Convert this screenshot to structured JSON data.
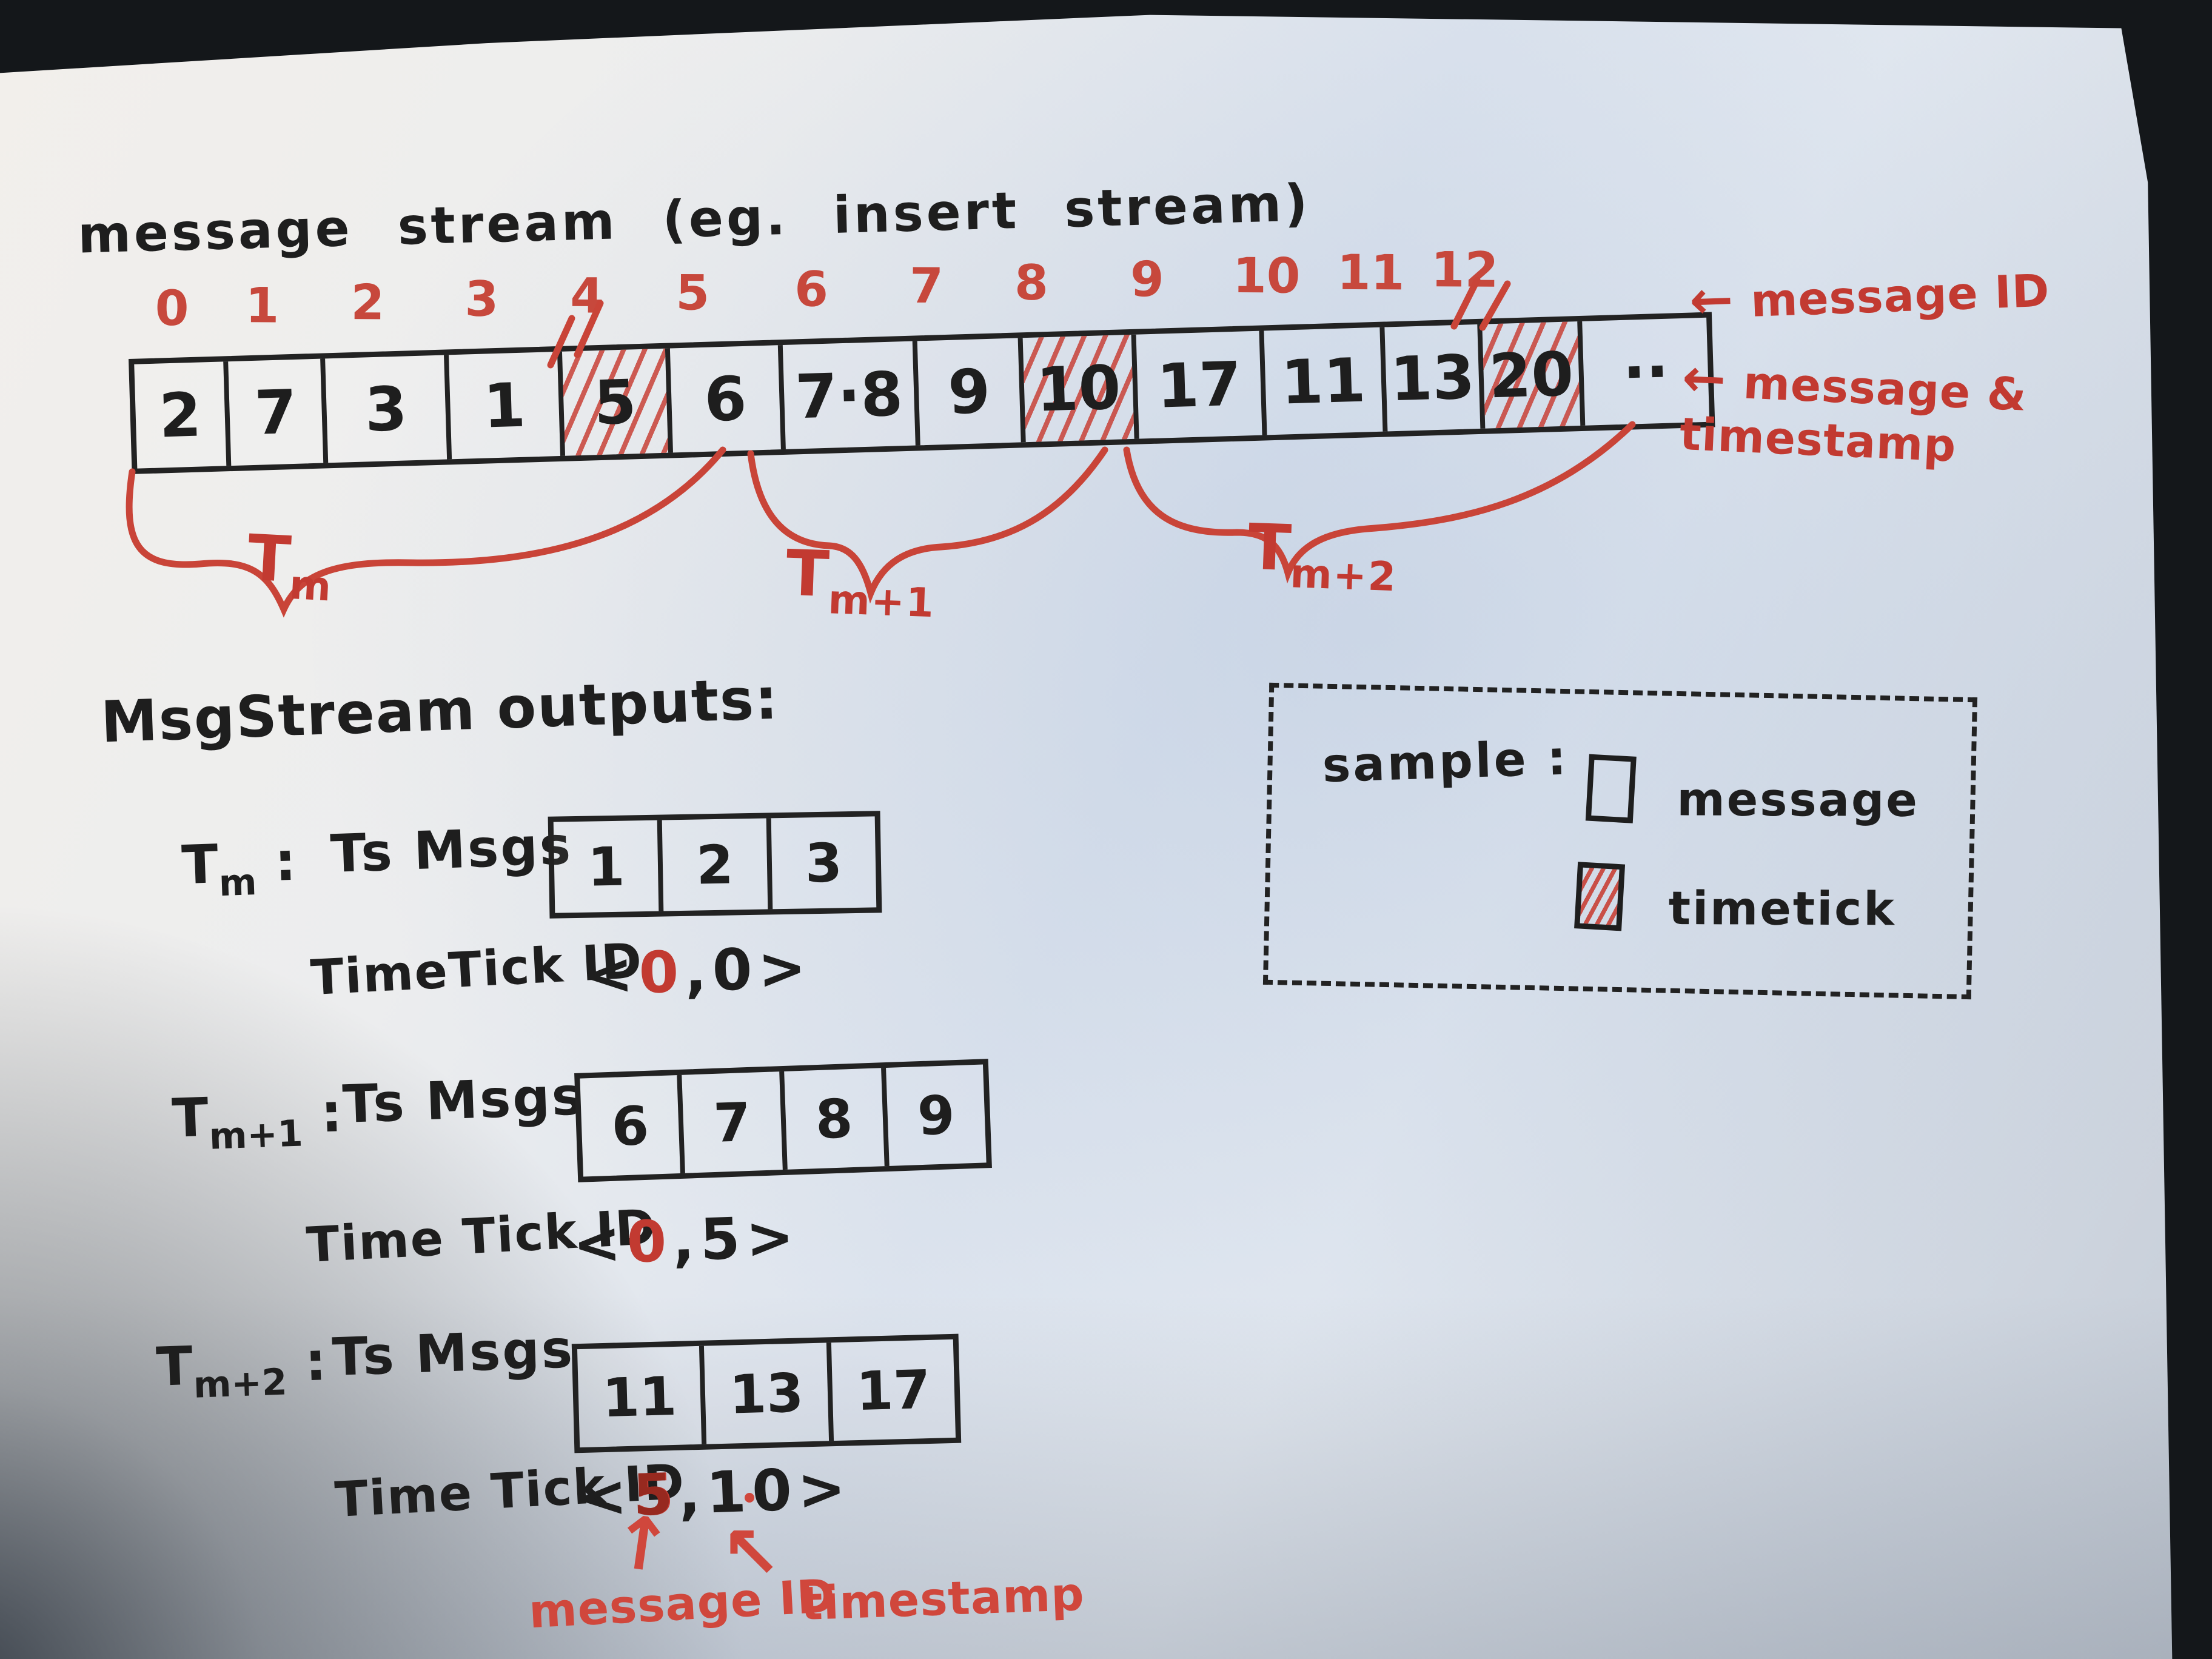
{
  "title": "message stream (eg. insert stream)",
  "stream": {
    "indices": [
      "0",
      "1",
      "2",
      "3",
      "4",
      "5",
      "6",
      "7",
      "8",
      "9",
      "10",
      "11",
      "12"
    ],
    "cells": [
      {
        "value": "2",
        "hatched": false
      },
      {
        "value": "7",
        "hatched": false
      },
      {
        "value": "3",
        "hatched": false
      },
      {
        "value": "1",
        "hatched": false
      },
      {
        "value": "5",
        "hatched": true
      },
      {
        "value": "6",
        "hatched": false
      },
      {
        "value": "7·8",
        "hatched": false
      },
      {
        "value": "9",
        "hatched": false
      },
      {
        "value": "10",
        "hatched": true
      },
      {
        "value": "17",
        "hatched": false
      },
      {
        "value": "11",
        "hatched": false
      },
      {
        "value": "13",
        "hatched": false
      },
      {
        "value": "20",
        "hatched": true
      },
      {
        "value": "··",
        "hatched": false
      }
    ],
    "annotation_ids": {
      "arrow": "←",
      "label": "message ID"
    },
    "annotation_cells": {
      "arrow": "←",
      "label": "message & timestamp"
    },
    "window_labels": [
      {
        "base": "T",
        "sub": "m"
      },
      {
        "base": "T",
        "sub": "m+1"
      },
      {
        "base": "T",
        "sub": "m+2"
      }
    ]
  },
  "outputs": {
    "heading": "MsgStream outputs:",
    "rows": [
      {
        "window": {
          "base": "T",
          "sub": "m"
        },
        "colon": ":",
        "msgs_label": "Ts Msgs",
        "msgs": [
          "1",
          "2",
          "3"
        ],
        "tick_label": "TimeTick ID",
        "tuple": {
          "open": "<",
          "first": "0",
          "comma": ",",
          "second": "0",
          "close": ">"
        }
      },
      {
        "window": {
          "base": "T",
          "sub": "m+1"
        },
        "colon": ":",
        "msgs_label": "Ts Msgs",
        "msgs": [
          "6",
          "7",
          "8",
          "9"
        ],
        "tick_label": "Time Tick ID",
        "tuple": {
          "open": "<",
          "first": "0",
          "comma": ",",
          "second": "5",
          "close": ">"
        }
      },
      {
        "window": {
          "base": "T",
          "sub": "m+2"
        },
        "colon": ":",
        "msgs_label": "Ts Msgs",
        "msgs": [
          "11",
          "13",
          "17"
        ],
        "tick_label": "Time Tick ID",
        "tuple": {
          "open": "<",
          "first": "5",
          "comma": ",",
          "second": "10",
          "close": ">"
        }
      }
    ],
    "arrow_up": "↑",
    "arrow_upleft": "↖",
    "callout_first": "message ID",
    "callout_second": "timestamp"
  },
  "legend": {
    "title": "sample :",
    "items": [
      {
        "label": "message"
      },
      {
        "label": "timetick"
      }
    ]
  },
  "colors": {
    "red": "#c23a31",
    "ink": "#1e1e1e",
    "paper_blue": "#dde4ee",
    "background": "#14171a"
  }
}
